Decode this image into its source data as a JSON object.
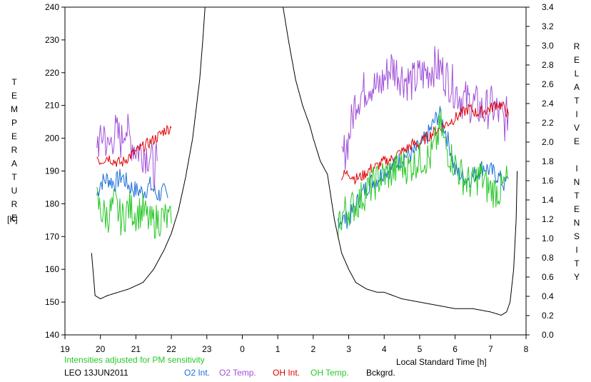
{
  "chart_data": {
    "type": "line",
    "xlabel": "Local Standard Time [h]",
    "ylabel_left": "TEMPERATURE",
    "ylabel_left_unit": "[K]",
    "ylabel_right": "RELATIVE INTENSITY",
    "x_ticks": [
      "19",
      "20",
      "21",
      "22",
      "23",
      "0",
      "1",
      "2",
      "3",
      "4",
      "5",
      "6",
      "7",
      "8"
    ],
    "x_range": [
      19,
      32
    ],
    "y_left_ticks": [
      "140",
      "150",
      "160",
      "170",
      "180",
      "190",
      "200",
      "210",
      "220",
      "230",
      "240"
    ],
    "y_left_range": [
      140,
      240
    ],
    "y_right_ticks": [
      "0.0",
      "0.2",
      "0.4",
      "0.6",
      "0.8",
      "1.0",
      "1.2",
      "1.4",
      "1.6",
      "1.8",
      "2.0",
      "2.2",
      "2.4",
      "2.6",
      "2.8",
      "3.0",
      "3.2",
      "3.4"
    ],
    "y_right_range": [
      0,
      3.4
    ],
    "note": "Intensities adjusted for PM sensitivity",
    "station_date": "LEO 13JUN2011",
    "series": [
      {
        "name": "O2 Int.",
        "color": "#1a6ed8",
        "axis": "right",
        "segments": [
          [
            [
              19.9,
              1.45
            ],
            [
              20.0,
              1.58
            ],
            [
              20.2,
              1.62
            ],
            [
              20.4,
              1.57
            ],
            [
              20.6,
              1.65
            ],
            [
              20.8,
              1.55
            ],
            [
              21.0,
              1.5
            ],
            [
              21.2,
              1.48
            ],
            [
              21.4,
              1.55
            ],
            [
              21.6,
              1.45
            ],
            [
              21.8,
              1.48
            ],
            [
              21.9,
              1.42
            ]
          ],
          [
            [
              26.7,
              1.2
            ],
            [
              27.0,
              1.2
            ],
            [
              27.2,
              1.35
            ],
            [
              27.4,
              1.48
            ],
            [
              27.6,
              1.58
            ],
            [
              27.8,
              1.62
            ],
            [
              28.0,
              1.7
            ],
            [
              28.2,
              1.72
            ],
            [
              28.4,
              1.8
            ],
            [
              28.6,
              1.86
            ],
            [
              28.8,
              1.88
            ],
            [
              29.0,
              1.95
            ],
            [
              29.2,
              2.05
            ],
            [
              29.4,
              2.2
            ],
            [
              29.55,
              2.3
            ],
            [
              29.7,
              2.15
            ],
            [
              29.85,
              1.95
            ],
            [
              30.0,
              1.7
            ],
            [
              30.2,
              1.64
            ],
            [
              30.4,
              1.62
            ],
            [
              30.6,
              1.68
            ],
            [
              30.8,
              1.75
            ],
            [
              31.0,
              1.7
            ],
            [
              31.2,
              1.65
            ],
            [
              31.4,
              1.55
            ],
            [
              31.5,
              1.62
            ]
          ]
        ]
      },
      {
        "name": "O2 Temp.",
        "color": "#a050d8",
        "axis": "left",
        "segments": [
          [
            [
              19.9,
              200
            ],
            [
              20.0,
              198
            ],
            [
              20.1,
              203
            ],
            [
              20.2,
              196
            ],
            [
              20.4,
              202
            ],
            [
              20.6,
              199
            ],
            [
              20.7,
              205
            ],
            [
              20.8,
              200
            ],
            [
              21.0,
              197
            ],
            [
              21.2,
              196
            ],
            [
              21.4,
              195
            ],
            [
              21.5,
              190
            ],
            [
              21.6,
              193
            ]
          ],
          [
            [
              26.8,
              193
            ],
            [
              27.0,
              200
            ],
            [
              27.2,
              212
            ],
            [
              27.4,
              214
            ],
            [
              27.6,
              217
            ],
            [
              27.8,
              215
            ],
            [
              28.0,
              218
            ],
            [
              28.2,
              222
            ],
            [
              28.4,
              220
            ],
            [
              28.6,
              218
            ],
            [
              28.8,
              217
            ],
            [
              29.0,
              219
            ],
            [
              29.2,
              220
            ],
            [
              29.4,
              222
            ],
            [
              29.6,
              221
            ],
            [
              29.8,
              218
            ],
            [
              30.0,
              215
            ],
            [
              30.2,
              212
            ],
            [
              30.4,
              211
            ],
            [
              30.6,
              210
            ],
            [
              30.8,
              208
            ],
            [
              31.0,
              210
            ],
            [
              31.2,
              208
            ],
            [
              31.4,
              205
            ],
            [
              31.5,
              208
            ]
          ]
        ]
      },
      {
        "name": "OH Int.",
        "color": "#e00000",
        "axis": "right",
        "segments": [
          [
            [
              19.9,
              1.85
            ],
            [
              20.0,
              1.8
            ],
            [
              20.2,
              1.85
            ],
            [
              20.4,
              1.8
            ],
            [
              20.6,
              1.78
            ],
            [
              20.8,
              1.85
            ],
            [
              21.0,
              1.9
            ],
            [
              21.2,
              1.95
            ],
            [
              21.4,
              2.0
            ],
            [
              21.6,
              2.05
            ],
            [
              21.8,
              2.12
            ],
            [
              22.0,
              2.15
            ]
          ],
          [
            [
              26.8,
              1.65
            ],
            [
              27.0,
              1.68
            ],
            [
              27.2,
              1.62
            ],
            [
              27.4,
              1.65
            ],
            [
              27.6,
              1.72
            ],
            [
              27.8,
              1.75
            ],
            [
              28.0,
              1.8
            ],
            [
              28.2,
              1.82
            ],
            [
              28.4,
              1.88
            ],
            [
              28.6,
              1.92
            ],
            [
              28.8,
              1.98
            ],
            [
              29.0,
              1.98
            ],
            [
              29.2,
              2.05
            ],
            [
              29.4,
              2.1
            ],
            [
              29.6,
              2.15
            ],
            [
              29.8,
              2.2
            ],
            [
              30.0,
              2.25
            ],
            [
              30.2,
              2.3
            ],
            [
              30.4,
              2.35
            ],
            [
              30.6,
              2.3
            ],
            [
              30.8,
              2.32
            ],
            [
              31.0,
              2.35
            ],
            [
              31.2,
              2.4
            ],
            [
              31.4,
              2.35
            ],
            [
              31.5,
              2.28
            ]
          ]
        ]
      },
      {
        "name": "OH Temp.",
        "color": "#28c828",
        "axis": "left",
        "segments": [
          [
            [
              19.9,
              181
            ],
            [
              20.0,
              178
            ],
            [
              20.2,
              176
            ],
            [
              20.4,
              180
            ],
            [
              20.6,
              175
            ],
            [
              20.8,
              179
            ],
            [
              21.0,
              177
            ],
            [
              21.2,
              178
            ],
            [
              21.4,
              174
            ],
            [
              21.6,
              175
            ],
            [
              21.8,
              176
            ],
            [
              22.0,
              174
            ]
          ],
          [
            [
              26.7,
              174
            ],
            [
              26.9,
              178
            ],
            [
              27.1,
              179
            ],
            [
              27.3,
              181
            ],
            [
              27.5,
              184
            ],
            [
              27.7,
              186
            ],
            [
              27.9,
              188
            ],
            [
              28.1,
              189
            ],
            [
              28.3,
              190
            ],
            [
              28.5,
              192
            ],
            [
              28.7,
              191
            ],
            [
              28.9,
              193
            ],
            [
              29.1,
              194
            ],
            [
              29.3,
              194
            ],
            [
              29.5,
              200
            ],
            [
              29.6,
              204
            ],
            [
              29.7,
              198
            ],
            [
              29.9,
              194
            ],
            [
              30.1,
              190
            ],
            [
              30.3,
              187
            ],
            [
              30.5,
              186
            ],
            [
              30.7,
              189
            ],
            [
              30.9,
              185
            ],
            [
              31.1,
              184
            ],
            [
              31.3,
              184
            ],
            [
              31.5,
              188
            ]
          ]
        ]
      },
      {
        "name": "Bckgrd.",
        "color": "#000000",
        "axis": "left",
        "segments": [
          [
            [
              19.75,
              165
            ],
            [
              19.85,
              152
            ],
            [
              20.0,
              151
            ],
            [
              20.2,
              152
            ],
            [
              20.5,
              153
            ],
            [
              20.8,
              154
            ],
            [
              21.0,
              155
            ],
            [
              21.2,
              156
            ],
            [
              21.5,
              160
            ],
            [
              21.8,
              166
            ],
            [
              22.0,
              171
            ],
            [
              22.2,
              178
            ],
            [
              22.4,
              188
            ],
            [
              22.6,
              200
            ],
            [
              22.8,
              218
            ],
            [
              22.9,
              232
            ],
            [
              22.95,
              240
            ]
          ],
          [
            [
              25.15,
              240
            ],
            [
              25.3,
              230
            ],
            [
              25.5,
              218
            ],
            [
              25.7,
              210
            ],
            [
              25.9,
              204
            ],
            [
              26.0,
              200
            ],
            [
              26.2,
              193
            ],
            [
              26.4,
              189
            ],
            [
              26.5,
              182
            ],
            [
              26.6,
              175
            ],
            [
              26.8,
              165
            ],
            [
              27.0,
              160
            ],
            [
              27.2,
              156
            ],
            [
              27.5,
              154
            ],
            [
              27.8,
              153
            ],
            [
              28.0,
              153
            ],
            [
              28.5,
              151
            ],
            [
              29.0,
              150
            ],
            [
              29.5,
              149
            ],
            [
              30.0,
              148
            ],
            [
              30.5,
              148
            ],
            [
              31.0,
              147
            ],
            [
              31.3,
              146
            ],
            [
              31.45,
              147
            ],
            [
              31.55,
              150
            ],
            [
              31.65,
              160
            ],
            [
              31.72,
              175
            ],
            [
              31.75,
              190
            ]
          ]
        ]
      }
    ]
  }
}
